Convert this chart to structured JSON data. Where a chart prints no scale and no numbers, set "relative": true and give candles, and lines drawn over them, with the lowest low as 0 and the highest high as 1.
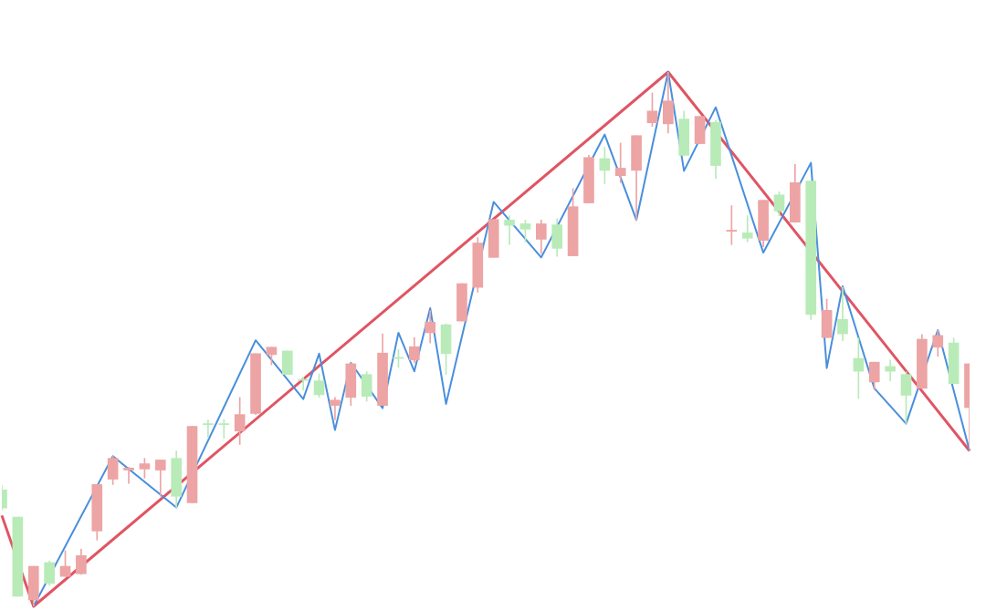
{
  "chart_data": {
    "type": "candlestick",
    "relative": true,
    "categories": [
      null,
      null,
      null,
      null,
      null,
      null,
      null,
      null,
      null,
      null,
      null,
      null,
      null,
      null,
      null,
      null,
      null,
      null,
      null,
      null,
      null,
      null,
      null,
      null,
      null,
      null,
      null,
      null,
      null,
      null,
      null,
      null,
      null,
      null,
      null,
      null,
      null,
      null,
      null,
      null,
      null,
      null,
      null,
      null,
      null,
      null,
      null,
      null,
      null,
      null,
      null,
      null,
      null,
      null,
      null,
      null,
      null,
      null,
      null,
      null,
      null,
      null
    ],
    "ohlc": [
      [
        0.218,
        0.226,
        0.18,
        0.184
      ],
      [
        0.167,
        0.167,
        0.019,
        0.019
      ],
      [
        0.012,
        0.075,
        0,
        0.075
      ],
      [
        0.082,
        0.085,
        0.039,
        0.043
      ],
      [
        0.056,
        0.104,
        0.056,
        0.075
      ],
      [
        0.061,
        0.107,
        0.06,
        0.095
      ],
      [
        0.141,
        0.228,
        0.124,
        0.228
      ],
      [
        0.238,
        0.281,
        0.228,
        0.277
      ],
      [
        0.255,
        0.26,
        0.23,
        0.259
      ],
      [
        0.257,
        0.277,
        0.24,
        0.267
      ],
      [
        0.255,
        0.274,
        0.206,
        0.274
      ],
      [
        0.277,
        0.291,
        0.185,
        0.206
      ],
      [
        0.194,
        0.337,
        0.194,
        0.337
      ],
      [
        0.342,
        0.349,
        0.316,
        0.34
      ],
      [
        0.342,
        0.35,
        0.315,
        0.34
      ],
      [
        0.328,
        0.391,
        0.303,
        0.359
      ],
      [
        0.361,
        0.473,
        0.359,
        0.473
      ],
      [
        0.471,
        0.485,
        0.452,
        0.485
      ],
      [
        0.478,
        0.478,
        0.434,
        0.434
      ],
      [
        0.425,
        0.429,
        0.405,
        0.423
      ],
      [
        0.422,
        0.435,
        0.391,
        0.396
      ],
      [
        0.376,
        0.391,
        0.349,
        0.386
      ],
      [
        0.391,
        0.456,
        0.376,
        0.454
      ],
      [
        0.434,
        0.439,
        0.384,
        0.393
      ],
      [
        0.376,
        0.51,
        0.376,
        0.474
      ],
      [
        0.466,
        0.481,
        0.447,
        0.464
      ],
      [
        0.461,
        0.503,
        0.456,
        0.486
      ],
      [
        0.512,
        0.553,
        0.493,
        0.532
      ],
      [
        0.527,
        0.529,
        0.434,
        0.473
      ],
      [
        0.534,
        0.604,
        0.534,
        0.604
      ],
      [
        0.597,
        0.69,
        0.588,
        0.68
      ],
      [
        0.653,
        0.724,
        0.653,
        0.724
      ],
      [
        0.723,
        0.731,
        0.677,
        0.713
      ],
      [
        0.716,
        0.723,
        0.682,
        0.706
      ],
      [
        0.687,
        0.723,
        0.66,
        0.716
      ],
      [
        0.714,
        0.726,
        0.655,
        0.67
      ],
      [
        0.656,
        0.782,
        0.656,
        0.748
      ],
      [
        0.755,
        0.844,
        0.755,
        0.84
      ],
      [
        0.838,
        0.859,
        0.791,
        0.816
      ],
      [
        0.806,
        0.867,
        0.793,
        0.82
      ],
      [
        0.816,
        0.881,
        0.723,
        0.881
      ],
      [
        0.905,
        0.961,
        0.898,
        0.927
      ],
      [
        0.903,
        1,
        0.886,
        0.946
      ],
      [
        0.912,
        0.927,
        0.844,
        0.844
      ],
      [
        0.866,
        0.917,
        0.866,
        0.917
      ],
      [
        0.906,
        0.91,
        0.801,
        0.825
      ],
      [
        0.702,
        0.75,
        0.677,
        0.704
      ],
      [
        0.699,
        0.731,
        0.682,
        0.689
      ],
      [
        0.685,
        0.76,
        0.673,
        0.76
      ],
      [
        0.77,
        0.776,
        0.731,
        0.74
      ],
      [
        0.719,
        0.827,
        0.719,
        0.793
      ],
      [
        0.796,
        0.796,
        0.537,
        0.546
      ],
      [
        0.503,
        0.575,
        0.503,
        0.554
      ],
      [
        0.537,
        0.597,
        0.497,
        0.51
      ],
      [
        0.464,
        0.502,
        0.389,
        0.44
      ],
      [
        0.42,
        0.457,
        0.405,
        0.457
      ],
      [
        0.449,
        0.461,
        0.422,
        0.44
      ],
      [
        0.434,
        0.439,
        0.342,
        0.395
      ],
      [
        0.408,
        0.509,
        0.408,
        0.5
      ],
      [
        0.485,
        0.517,
        0.468,
        0.507
      ],
      [
        0.493,
        0.502,
        0.417,
        0.417
      ],
      [
        0.372,
        0.454,
        0.291,
        0.454
      ]
    ],
    "colors": [
      "#b8ebb8",
      "#b8ebb8",
      "#eda4a4",
      "#b8ebb8",
      "#eda4a4",
      "#eda4a4",
      "#eda4a4",
      "#eda4a4",
      "#eda4a4",
      "#eda4a4",
      "#eda4a4",
      "#b8ebb8",
      "#eda4a4",
      "#b8ebb8",
      "#b8ebb8",
      "#eda4a4",
      "#eda4a4",
      "#eda4a4",
      "#b8ebb8",
      "#b8ebb8",
      "#b8ebb8",
      "#eda4a4",
      "#eda4a4",
      "#b8ebb8",
      "#eda4a4",
      "#b8ebb8",
      "#eda4a4",
      "#eda4a4",
      "#b8ebb8",
      "#eda4a4",
      "#eda4a4",
      "#eda4a4",
      "#b8ebb8",
      "#b8ebb8",
      "#eda4a4",
      "#b8ebb8",
      "#eda4a4",
      "#eda4a4",
      "#b8ebb8",
      "#eda4a4",
      "#eda4a4",
      "#eda4a4",
      "#eda4a4",
      "#b8ebb8",
      "#eda4a4",
      "#b8ebb8",
      "#eda4a4",
      "#b8ebb8",
      "#eda4a4",
      "#b8ebb8",
      "#eda4a4",
      "#b8ebb8",
      "#eda4a4",
      "#b8ebb8",
      "#b8ebb8",
      "#eda4a4",
      "#b8ebb8",
      "#b8ebb8",
      "#eda4a4",
      "#eda4a4",
      "#b8ebb8",
      "#eda4a4"
    ],
    "series": [
      {
        "type": "line",
        "color": "#4a8fdc",
        "values": [
          null,
          null,
          0,
          null,
          null,
          null,
          null,
          0.281,
          null,
          null,
          null,
          0.185,
          null,
          null,
          null,
          null,
          0.498,
          null,
          null,
          0.388,
          0.473,
          0.33,
          0.456,
          null,
          0.371,
          0.512,
          0.44,
          0.558,
          0.379,
          null,
          null,
          0.757,
          null,
          null,
          0.653,
          null,
          null,
          null,
          0.883,
          null,
          0.723,
          null,
          1,
          0.815,
          null,
          0.934,
          null,
          null,
          0.662,
          null,
          null,
          0.83,
          0.446,
          0.599,
          null,
          0.408,
          null,
          0.342,
          null,
          0.517,
          null,
          0.291
        ]
      },
      {
        "type": "line",
        "color": "#e05563",
        "values": [
          0.17,
          null,
          0,
          null,
          null,
          null,
          null,
          null,
          null,
          null,
          null,
          null,
          null,
          null,
          null,
          null,
          null,
          null,
          null,
          null,
          null,
          null,
          null,
          null,
          null,
          null,
          null,
          null,
          null,
          null,
          null,
          null,
          null,
          null,
          null,
          null,
          null,
          null,
          null,
          null,
          null,
          null,
          1,
          null,
          null,
          null,
          null,
          null,
          null,
          null,
          null,
          null,
          null,
          null,
          null,
          null,
          null,
          null,
          null,
          null,
          null,
          0.291
        ]
      }
    ]
  }
}
